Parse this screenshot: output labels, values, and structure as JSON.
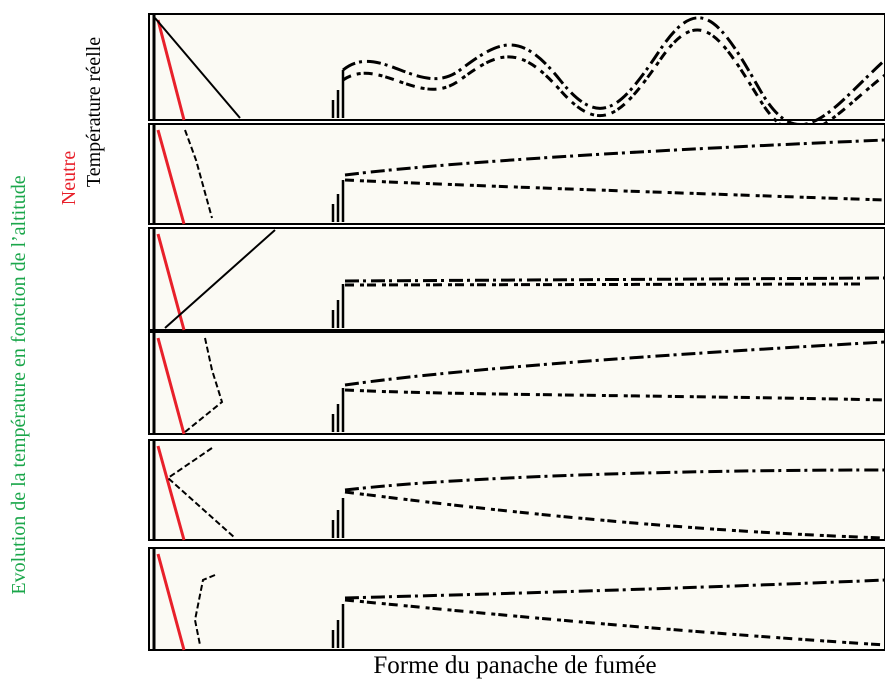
{
  "labels": {
    "y_axis": "Evolution de la température en fonction de l’altitude",
    "neutral": "Neutre",
    "real": "Température réelle",
    "x_axis": "Forme du panache de fumée"
  }
}
